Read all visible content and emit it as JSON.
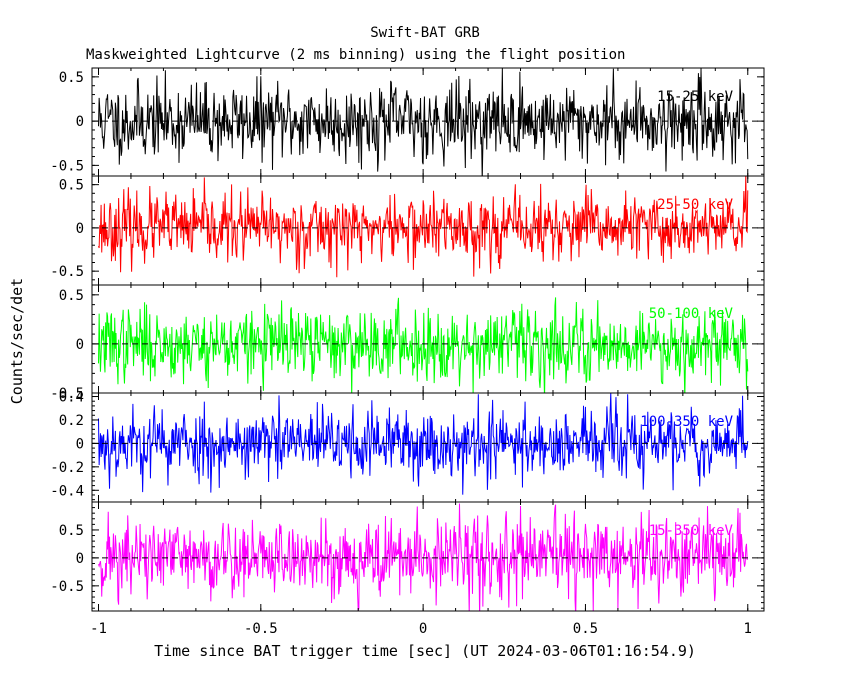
{
  "chart_data": {
    "type": "line",
    "title": "Swift-BAT GRB",
    "subtitle": "Maskweighted Lightcurve (2 ms binning) using the flight position",
    "xlabel": "Time since BAT trigger time [sec] (UT 2024-03-06T01:16:54.9)",
    "ylabel": "Counts/sec/det",
    "xlim": [
      -1.02,
      1.05
    ],
    "xticks": [
      -1,
      -0.5,
      0,
      0.5,
      1
    ],
    "xtick_labels": [
      "-1",
      "-0.5",
      "0",
      "0.5",
      "1"
    ],
    "grid": false,
    "binning_sec": 0.002,
    "panels": [
      {
        "name": "15-25 keV",
        "color": "#000000",
        "ylim": [
          -0.62,
          0.6
        ],
        "yticks": [
          -0.5,
          0,
          0.5
        ],
        "ytick_labels": [
          "-0.5",
          "0",
          "0.5"
        ],
        "x_range": [
          -1,
          1
        ],
        "noise_amplitude": 0.42,
        "seed": 11
      },
      {
        "name": "25-50 keV",
        "color": "#ff0000",
        "ylim": [
          -0.66,
          0.6
        ],
        "yticks": [
          -0.5,
          0,
          0.5
        ],
        "ytick_labels": [
          "-0.5",
          "0",
          "0.5"
        ],
        "x_range": [
          -1,
          1
        ],
        "noise_amplitude": 0.38,
        "seed": 23
      },
      {
        "name": "50-100 keV",
        "color": "#00ff00",
        "ylim": [
          -0.5,
          0.6
        ],
        "yticks": [
          -0.5,
          0,
          0.5
        ],
        "ytick_labels": [
          "-0.5",
          "0",
          "0.5"
        ],
        "x_range": [
          -1,
          1
        ],
        "noise_amplitude": 0.36,
        "seed": 37
      },
      {
        "name": "100-350 keV",
        "color": "#0000ff",
        "ylim": [
          -0.5,
          0.43
        ],
        "yticks": [
          -0.4,
          -0.2,
          0,
          0.2,
          0.4
        ],
        "ytick_labels": [
          "-0.4",
          "-0.2",
          "0",
          "0.2",
          "0.4"
        ],
        "x_range": [
          -1,
          1
        ],
        "noise_amplitude": 0.3,
        "seed": 53
      },
      {
        "name": "15-350 keV",
        "color": "#ff00ff",
        "ylim": [
          -0.95,
          1.0
        ],
        "yticks": [
          -0.5,
          0,
          0.5
        ],
        "ytick_labels": [
          "-0.5",
          "0",
          "0.5"
        ],
        "x_range": [
          -1,
          1
        ],
        "noise_amplitude": 0.7,
        "seed": 71
      }
    ]
  }
}
